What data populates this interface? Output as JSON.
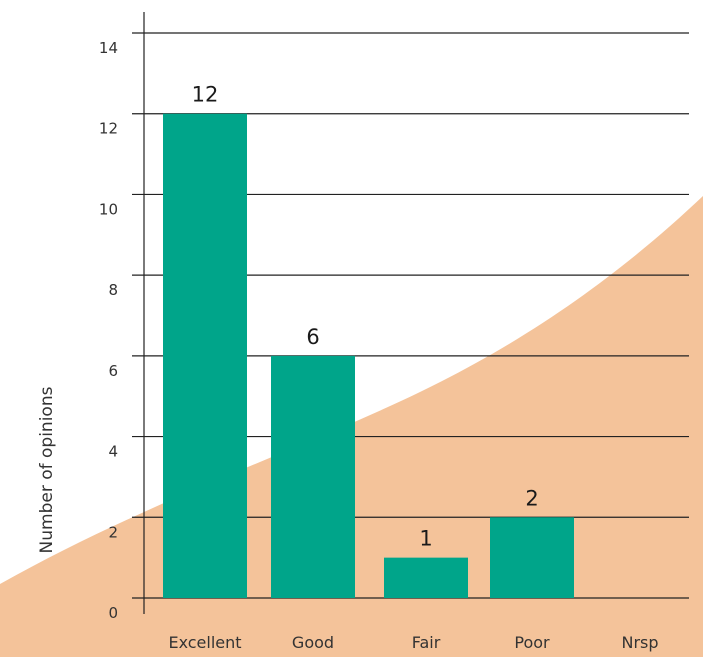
{
  "chart_data": {
    "type": "bar",
    "title": "",
    "xlabel": "",
    "ylabel": "Number of opinions",
    "categories": [
      "Excellent",
      "Good",
      "Fair",
      "Poor",
      "Nrsp"
    ],
    "values": [
      12,
      6,
      1,
      2,
      0
    ],
    "data_labels": [
      "12",
      "6",
      "1",
      "2",
      ""
    ],
    "ylim": [
      0,
      14
    ],
    "yticks": [
      0,
      2,
      4,
      6,
      8,
      10,
      12,
      14
    ],
    "grid": true,
    "legend": "none"
  },
  "colors": {
    "bar": "#00a58a",
    "background_shape": "#f4c39a",
    "gridline": "#222222",
    "text": "#333333"
  }
}
